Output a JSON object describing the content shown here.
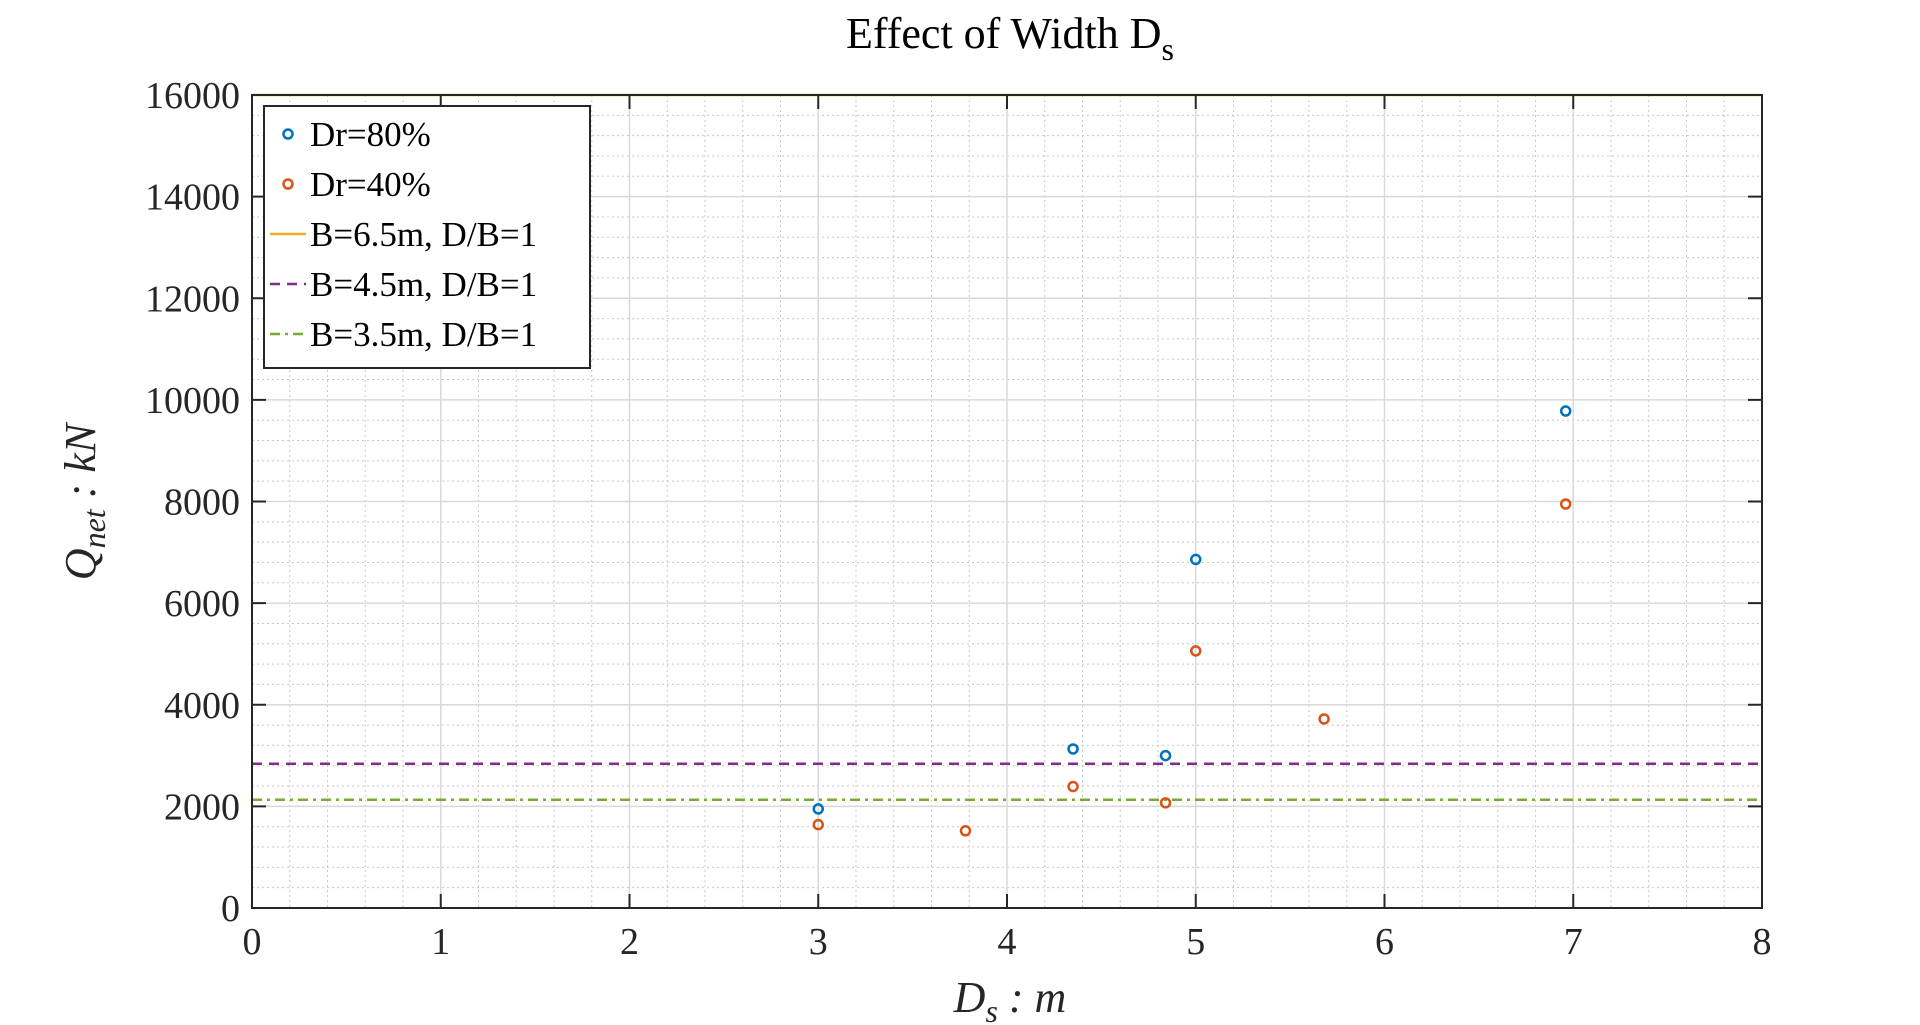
{
  "chart_data": {
    "type": "scatter",
    "title": "Effect of Width D",
    "title_subscript": "s",
    "xlabel_main": "D",
    "xlabel_sub": "s",
    "xlabel_suffix": " : m",
    "ylabel_main": "Q",
    "ylabel_sub": "net",
    "ylabel_suffix": " : kN",
    "xlim": [
      0,
      8
    ],
    "ylim": [
      0,
      16000
    ],
    "xticks": [
      0,
      1,
      2,
      3,
      4,
      5,
      6,
      7,
      8
    ],
    "yticks": [
      0,
      2000,
      4000,
      6000,
      8000,
      10000,
      12000,
      14000,
      16000
    ],
    "xtick_labels": [
      "0",
      "1",
      "2",
      "3",
      "4",
      "5",
      "6",
      "7",
      "8"
    ],
    "ytick_labels": [
      "0",
      "2000",
      "4000",
      "6000",
      "8000",
      "10000",
      "12000",
      "14000",
      "16000"
    ],
    "grid": true,
    "minor_grid": true,
    "legend_position": "top-left",
    "series": [
      {
        "name": "Dr=80%",
        "kind": "scatter",
        "color": "#0072BD",
        "x": [
          3.0,
          4.35,
          4.84,
          5.0,
          6.96
        ],
        "y": [
          1950,
          3130,
          3000,
          6860,
          9780
        ]
      },
      {
        "name": "Dr=40%",
        "kind": "scatter",
        "color": "#D95319",
        "x": [
          3.0,
          3.78,
          4.35,
          4.84,
          5.0,
          5.68,
          6.96
        ],
        "y": [
          1640,
          1520,
          2390,
          2070,
          5060,
          3720,
          7950
        ]
      }
    ],
    "reference_lines": [
      {
        "name": "B=6.5m, D/B=1",
        "y": 16000,
        "color": "#EDB120",
        "style": "solid"
      },
      {
        "name": "B=4.5m, D/B=1",
        "y": 2840,
        "color": "#7E2F8E",
        "style": "dashed"
      },
      {
        "name": "B=3.5m, D/B=1",
        "y": 2130,
        "color": "#77AC30",
        "style": "dashdot"
      }
    ]
  }
}
